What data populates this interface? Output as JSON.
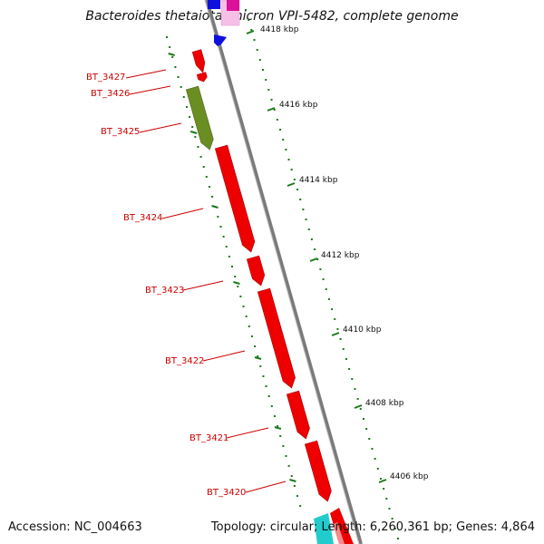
{
  "header": {
    "title": "Bacteroides thetaiotaomicron VPI-5482, complete genome"
  },
  "footer": {
    "accession": "Accession: NC_004663",
    "summary": "Topology: circular; Length: 6,260,361 bp; Genes: 4,864"
  },
  "genome_map": {
    "backbone_color": "#7a7a7a",
    "tick_color": "#1a7a1a",
    "gene_color": "#ee0000",
    "kbp_labels": [
      "4418 kbp",
      "4416 kbp",
      "4414 kbp",
      "4412 kbp",
      "4410 kbp",
      "4408 kbp",
      "4406 kbp"
    ],
    "genes": [
      {
        "label": "BT_3427",
        "color": "#ee0000"
      },
      {
        "label": "BT_3426",
        "color": "#ee0000"
      },
      {
        "label": "BT_3425",
        "color": "#6b8e23"
      },
      {
        "label": "BT_3424",
        "color": "#ee0000"
      },
      {
        "label": "BT_3423",
        "color": "#ee0000"
      },
      {
        "label": "BT_3422",
        "color": "#ee0000"
      },
      {
        "label": "BT_3421",
        "color": "#ee0000"
      },
      {
        "label": "BT_3420",
        "color": "#ee0000"
      }
    ],
    "other_features": [
      {
        "name": "blue-feature",
        "color": "#1010dd"
      },
      {
        "name": "magenta-feature",
        "color": "#dd1199"
      },
      {
        "name": "cyan-feature",
        "color": "#22cccc"
      }
    ]
  }
}
